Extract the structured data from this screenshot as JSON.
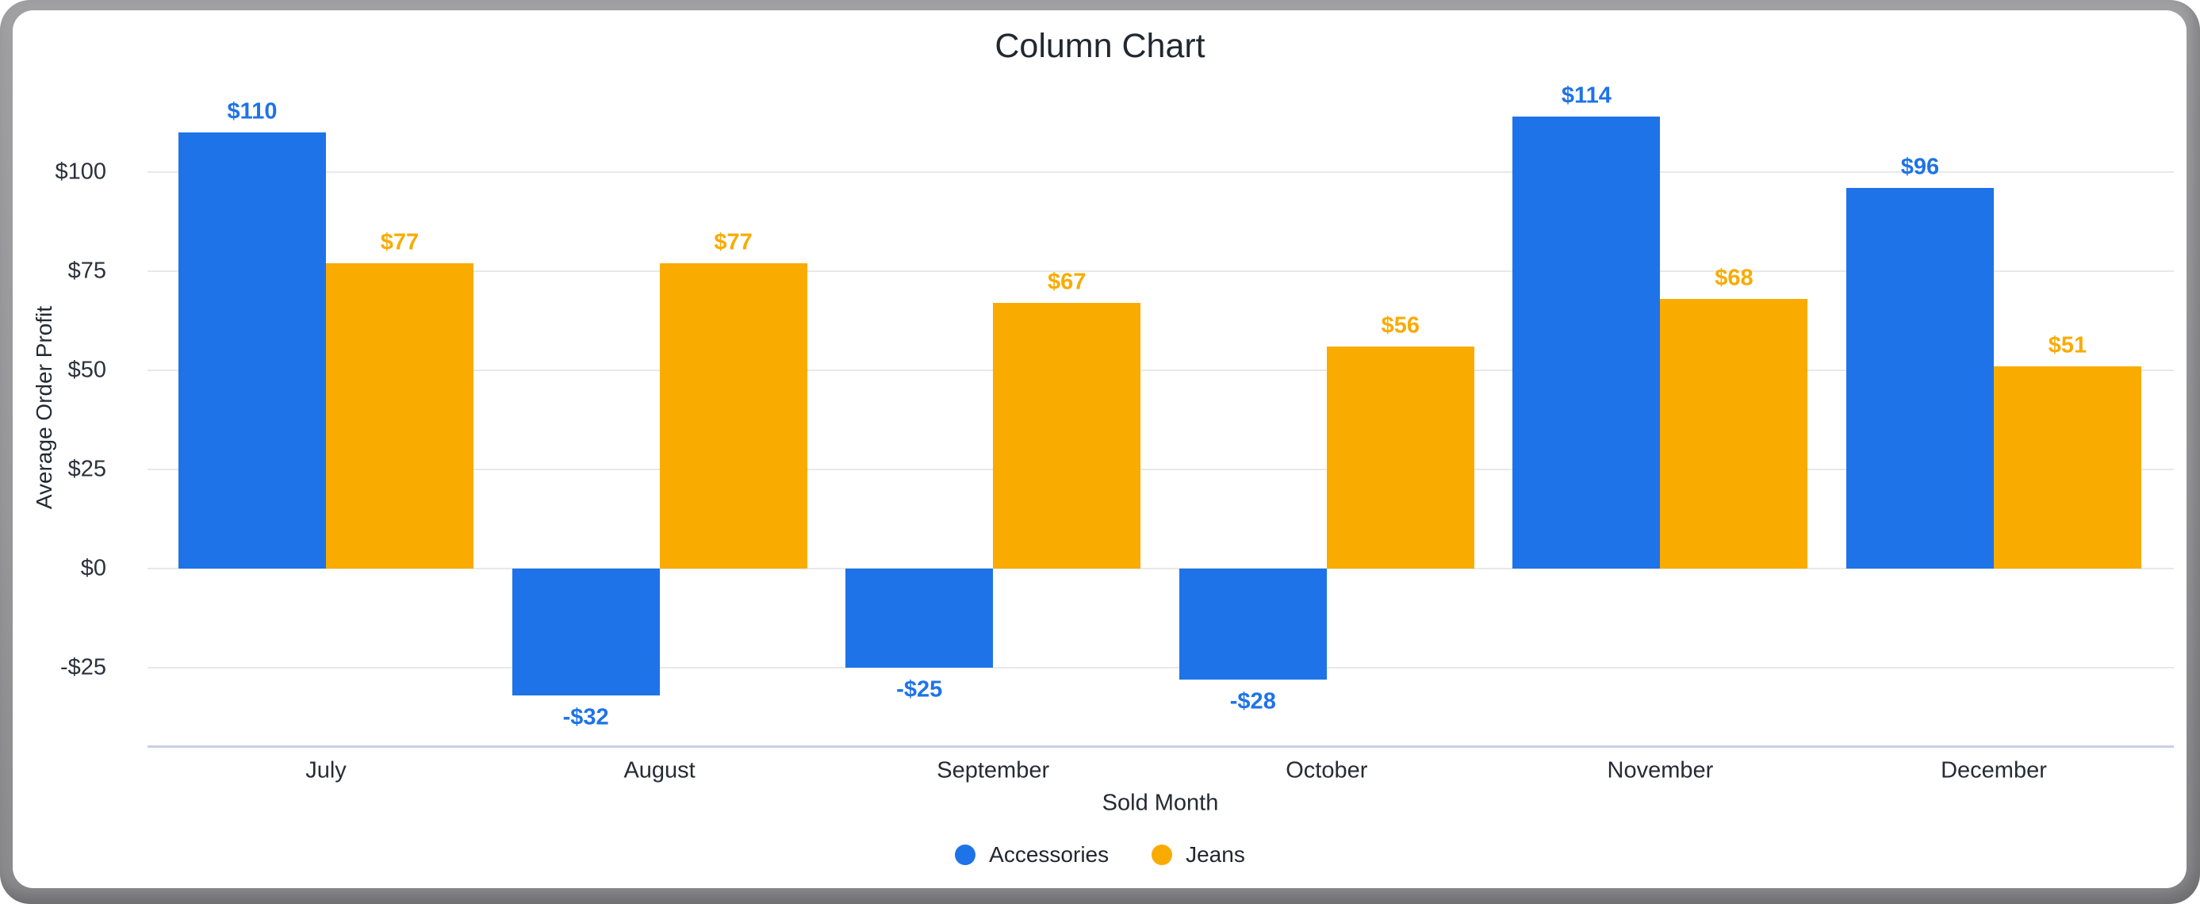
{
  "title": "Column Chart",
  "colors": {
    "accessories": "#1E73E8",
    "jeans": "#F9AB00",
    "gridline": "#E8E8EA",
    "axis_line": "#C7D0E2",
    "title_text": "#212830",
    "tick_text": "#2B323C",
    "frame_gray": "#98989B"
  },
  "chart_data": {
    "type": "bar",
    "title": "Column Chart",
    "xlabel": "Sold Month",
    "ylabel": "Average Order Profit",
    "categories": [
      "July",
      "August",
      "September",
      "October",
      "November",
      "December"
    ],
    "series": [
      {
        "name": "Accessories",
        "color": "#1E73E8",
        "values": [
          110,
          -32,
          -25,
          -28,
          114,
          96
        ],
        "labels": [
          "$110",
          "-$32",
          "-$25",
          "-$28",
          "$114",
          "$96"
        ]
      },
      {
        "name": "Jeans",
        "color": "#F9AB00",
        "values": [
          77,
          77,
          67,
          56,
          68,
          51
        ],
        "labels": [
          "$77",
          "$77",
          "$67",
          "$56",
          "$68",
          "$51"
        ]
      }
    ],
    "y_gridlines": [
      {
        "value": 100,
        "label": "$100"
      },
      {
        "value": 75,
        "label": "$75"
      },
      {
        "value": 50,
        "label": "$50"
      },
      {
        "value": 25,
        "label": "$25"
      },
      {
        "value": 0,
        "label": "$0"
      },
      {
        "value": -25,
        "label": "-$25"
      }
    ],
    "ylim": [
      -45,
      126
    ],
    "grid": true,
    "legend_position": "bottom"
  },
  "legend": {
    "items": [
      {
        "label": "Accessories",
        "color": "#1E73E8"
      },
      {
        "label": "Jeans",
        "color": "#F9AB00"
      }
    ]
  }
}
